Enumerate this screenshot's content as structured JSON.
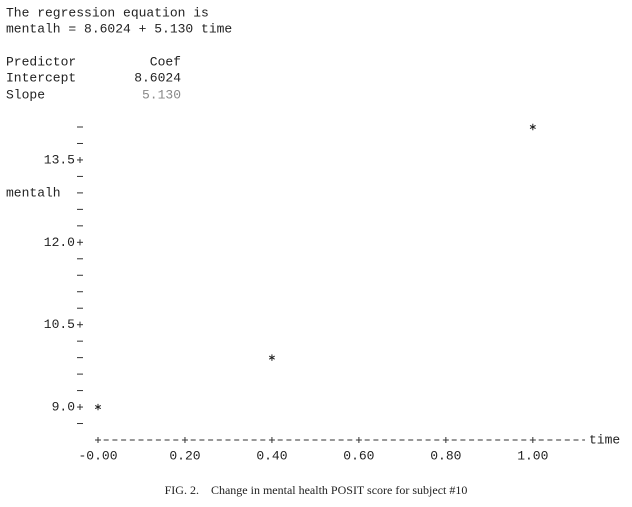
{
  "header": {
    "intro": "The regression equation is",
    "equation": "mentalh = 8.6024 + 5.130 time"
  },
  "table": {
    "columns": [
      "Predictor",
      "Coef"
    ],
    "rows": [
      [
        "Intercept",
        "8.6024"
      ],
      [
        "Slope",
        "5.130"
      ]
    ]
  },
  "chart_data": {
    "type": "scatter",
    "x": [
      0,
      0.4,
      1.0
    ],
    "values": [
      9.0,
      9.9,
      14.1
    ],
    "y_label": "mentalh",
    "x_label": "time",
    "xlim": [
      0,
      1.12
    ],
    "ylim": [
      8.4,
      14.1
    ],
    "xticks": [
      {
        "value": 0,
        "label": "-0.00"
      },
      {
        "value": 0.2,
        "label": "0.20"
      },
      {
        "value": 0.4,
        "label": "0.40"
      },
      {
        "value": 0.6,
        "label": "0.60"
      },
      {
        "value": 0.8,
        "label": "0.80"
      },
      {
        "value": 1.0,
        "label": "1.00"
      }
    ],
    "yticks": [
      {
        "value": 9,
        "label": "9.0"
      },
      {
        "value": 10.5,
        "label": "10.5"
      },
      {
        "value": 12,
        "label": "12.0"
      },
      {
        "value": 13.5,
        "label": "13.5"
      }
    ]
  },
  "caption": "FIG. 2.    Change in mental health POSIT score for subject #10"
}
